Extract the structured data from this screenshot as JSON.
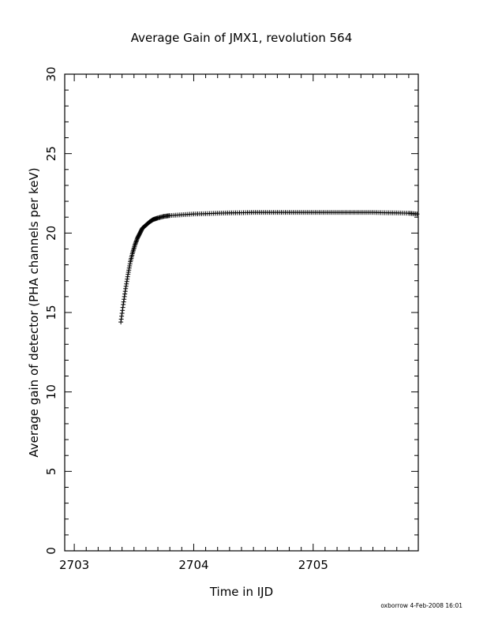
{
  "chart_data": {
    "type": "scatter",
    "title": "Average Gain of JMX1, revolution 564",
    "xlabel": "Time in IJD",
    "ylabel": "Average gain of detector (PHA channels per keV)",
    "xlim": [
      2702.92,
      2705.88
    ],
    "ylim": [
      0,
      30
    ],
    "xticks": [
      "2703",
      "2704",
      "2705"
    ],
    "yticks": [
      "0",
      "5",
      "10",
      "15",
      "20",
      "25",
      "30"
    ],
    "marker": "plus",
    "grid": false,
    "series": [
      {
        "x": [
          2703.39,
          2703.41,
          2703.43,
          2703.45,
          2703.47,
          2703.49,
          2703.51,
          2703.53,
          2703.55,
          2703.57,
          2703.6,
          2703.63,
          2703.66,
          2703.7,
          2703.75,
          2703.8,
          2703.9,
          2704.0,
          2704.1,
          2704.2,
          2704.3,
          2704.4,
          2704.5,
          2704.6,
          2704.7,
          2704.8,
          2704.9,
          2705.0,
          2705.1,
          2705.2,
          2705.3,
          2705.4,
          2705.5,
          2705.6,
          2705.7,
          2705.8,
          2705.87
        ],
        "y": [
          14.4,
          15.5,
          16.5,
          17.4,
          18.2,
          18.8,
          19.3,
          19.7,
          20.0,
          20.3,
          20.5,
          20.7,
          20.85,
          20.95,
          21.05,
          21.1,
          21.15,
          21.2,
          21.22,
          21.25,
          21.27,
          21.28,
          21.3,
          21.3,
          21.3,
          21.3,
          21.3,
          21.3,
          21.3,
          21.3,
          21.3,
          21.3,
          21.3,
          21.28,
          21.27,
          21.25,
          21.2
        ]
      }
    ]
  },
  "footer": {
    "stamp": "oxborrow   4-Feb-2008 16:01"
  }
}
